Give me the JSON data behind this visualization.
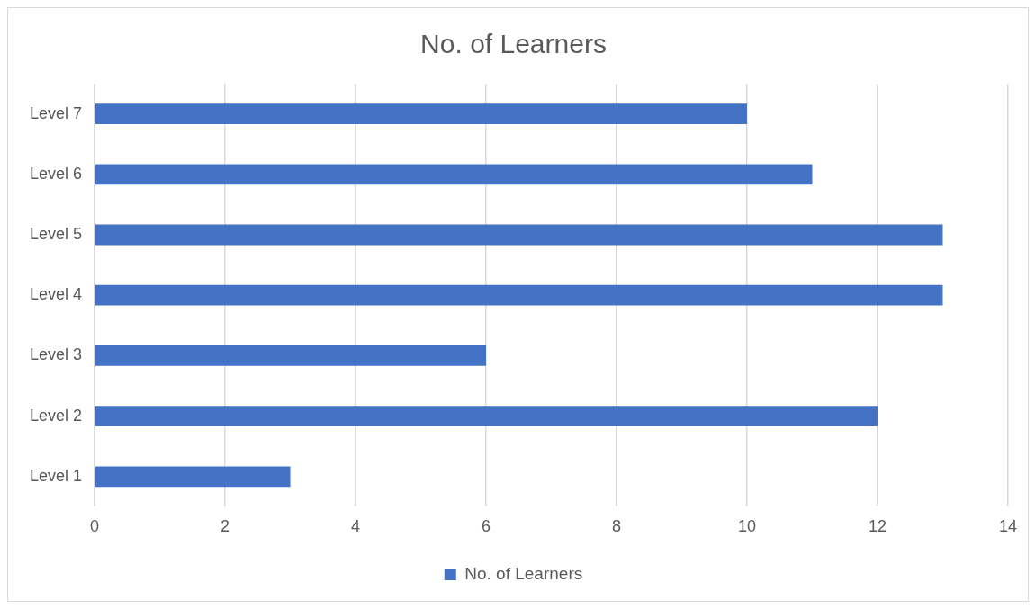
{
  "chart_data": {
    "type": "bar",
    "orientation": "horizontal",
    "title": "No. of Learners",
    "categories": [
      "Level 7",
      "Level 6",
      "Level 5",
      "Level 4",
      "Level 3",
      "Level 2",
      "Level 1"
    ],
    "series": [
      {
        "name": "No. of Learners",
        "color": "#4472c4",
        "values": [
          10,
          11,
          13,
          13,
          6,
          12,
          3
        ]
      }
    ],
    "xlim": [
      0,
      14
    ],
    "xticks": [
      0,
      2,
      4,
      6,
      8,
      10,
      12,
      14
    ],
    "grid": "x",
    "legend": "bottom"
  }
}
